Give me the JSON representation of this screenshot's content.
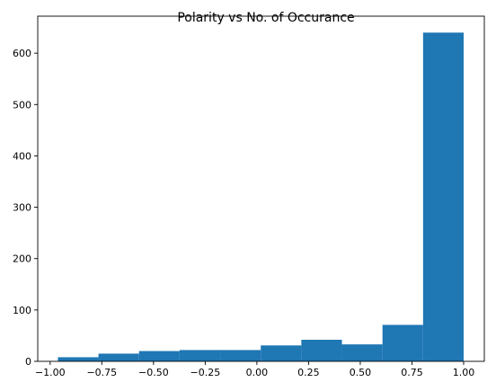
{
  "chart_data": {
    "type": "bar",
    "title": "Polarity vs No. of Occurance",
    "xlabel": "",
    "ylabel": "",
    "bins": [
      {
        "start": -0.9625,
        "end": -0.7663,
        "count": 8
      },
      {
        "start": -0.7663,
        "end": -0.57,
        "count": 15
      },
      {
        "start": -0.57,
        "end": -0.3738,
        "count": 20
      },
      {
        "start": -0.3738,
        "end": -0.1775,
        "count": 22
      },
      {
        "start": -0.1775,
        "end": 0.0188,
        "count": 22
      },
      {
        "start": 0.0188,
        "end": 0.215,
        "count": 31
      },
      {
        "start": 0.215,
        "end": 0.4113,
        "count": 42
      },
      {
        "start": 0.4113,
        "end": 0.6075,
        "count": 33
      },
      {
        "start": 0.6075,
        "end": 0.8038,
        "count": 71
      },
      {
        "start": 0.8038,
        "end": 1.0,
        "count": 640
      }
    ],
    "xlim": [
      -1.06,
      1.1
    ],
    "ylim": [
      0,
      672
    ],
    "xticks": [
      -1.0,
      -0.75,
      -0.5,
      -0.25,
      0.0,
      0.25,
      0.5,
      0.75,
      1.0
    ],
    "xtick_labels": [
      "−1.00",
      "−0.75",
      "−0.50",
      "−0.25",
      "0.00",
      "0.25",
      "0.50",
      "0.75",
      "1.00"
    ],
    "yticks": [
      0,
      100,
      200,
      300,
      400,
      500,
      600
    ],
    "ytick_labels": [
      "0",
      "100",
      "200",
      "300",
      "400",
      "500",
      "600"
    ],
    "bar_color": "#1f77b4",
    "grid": false,
    "legend": "none"
  }
}
